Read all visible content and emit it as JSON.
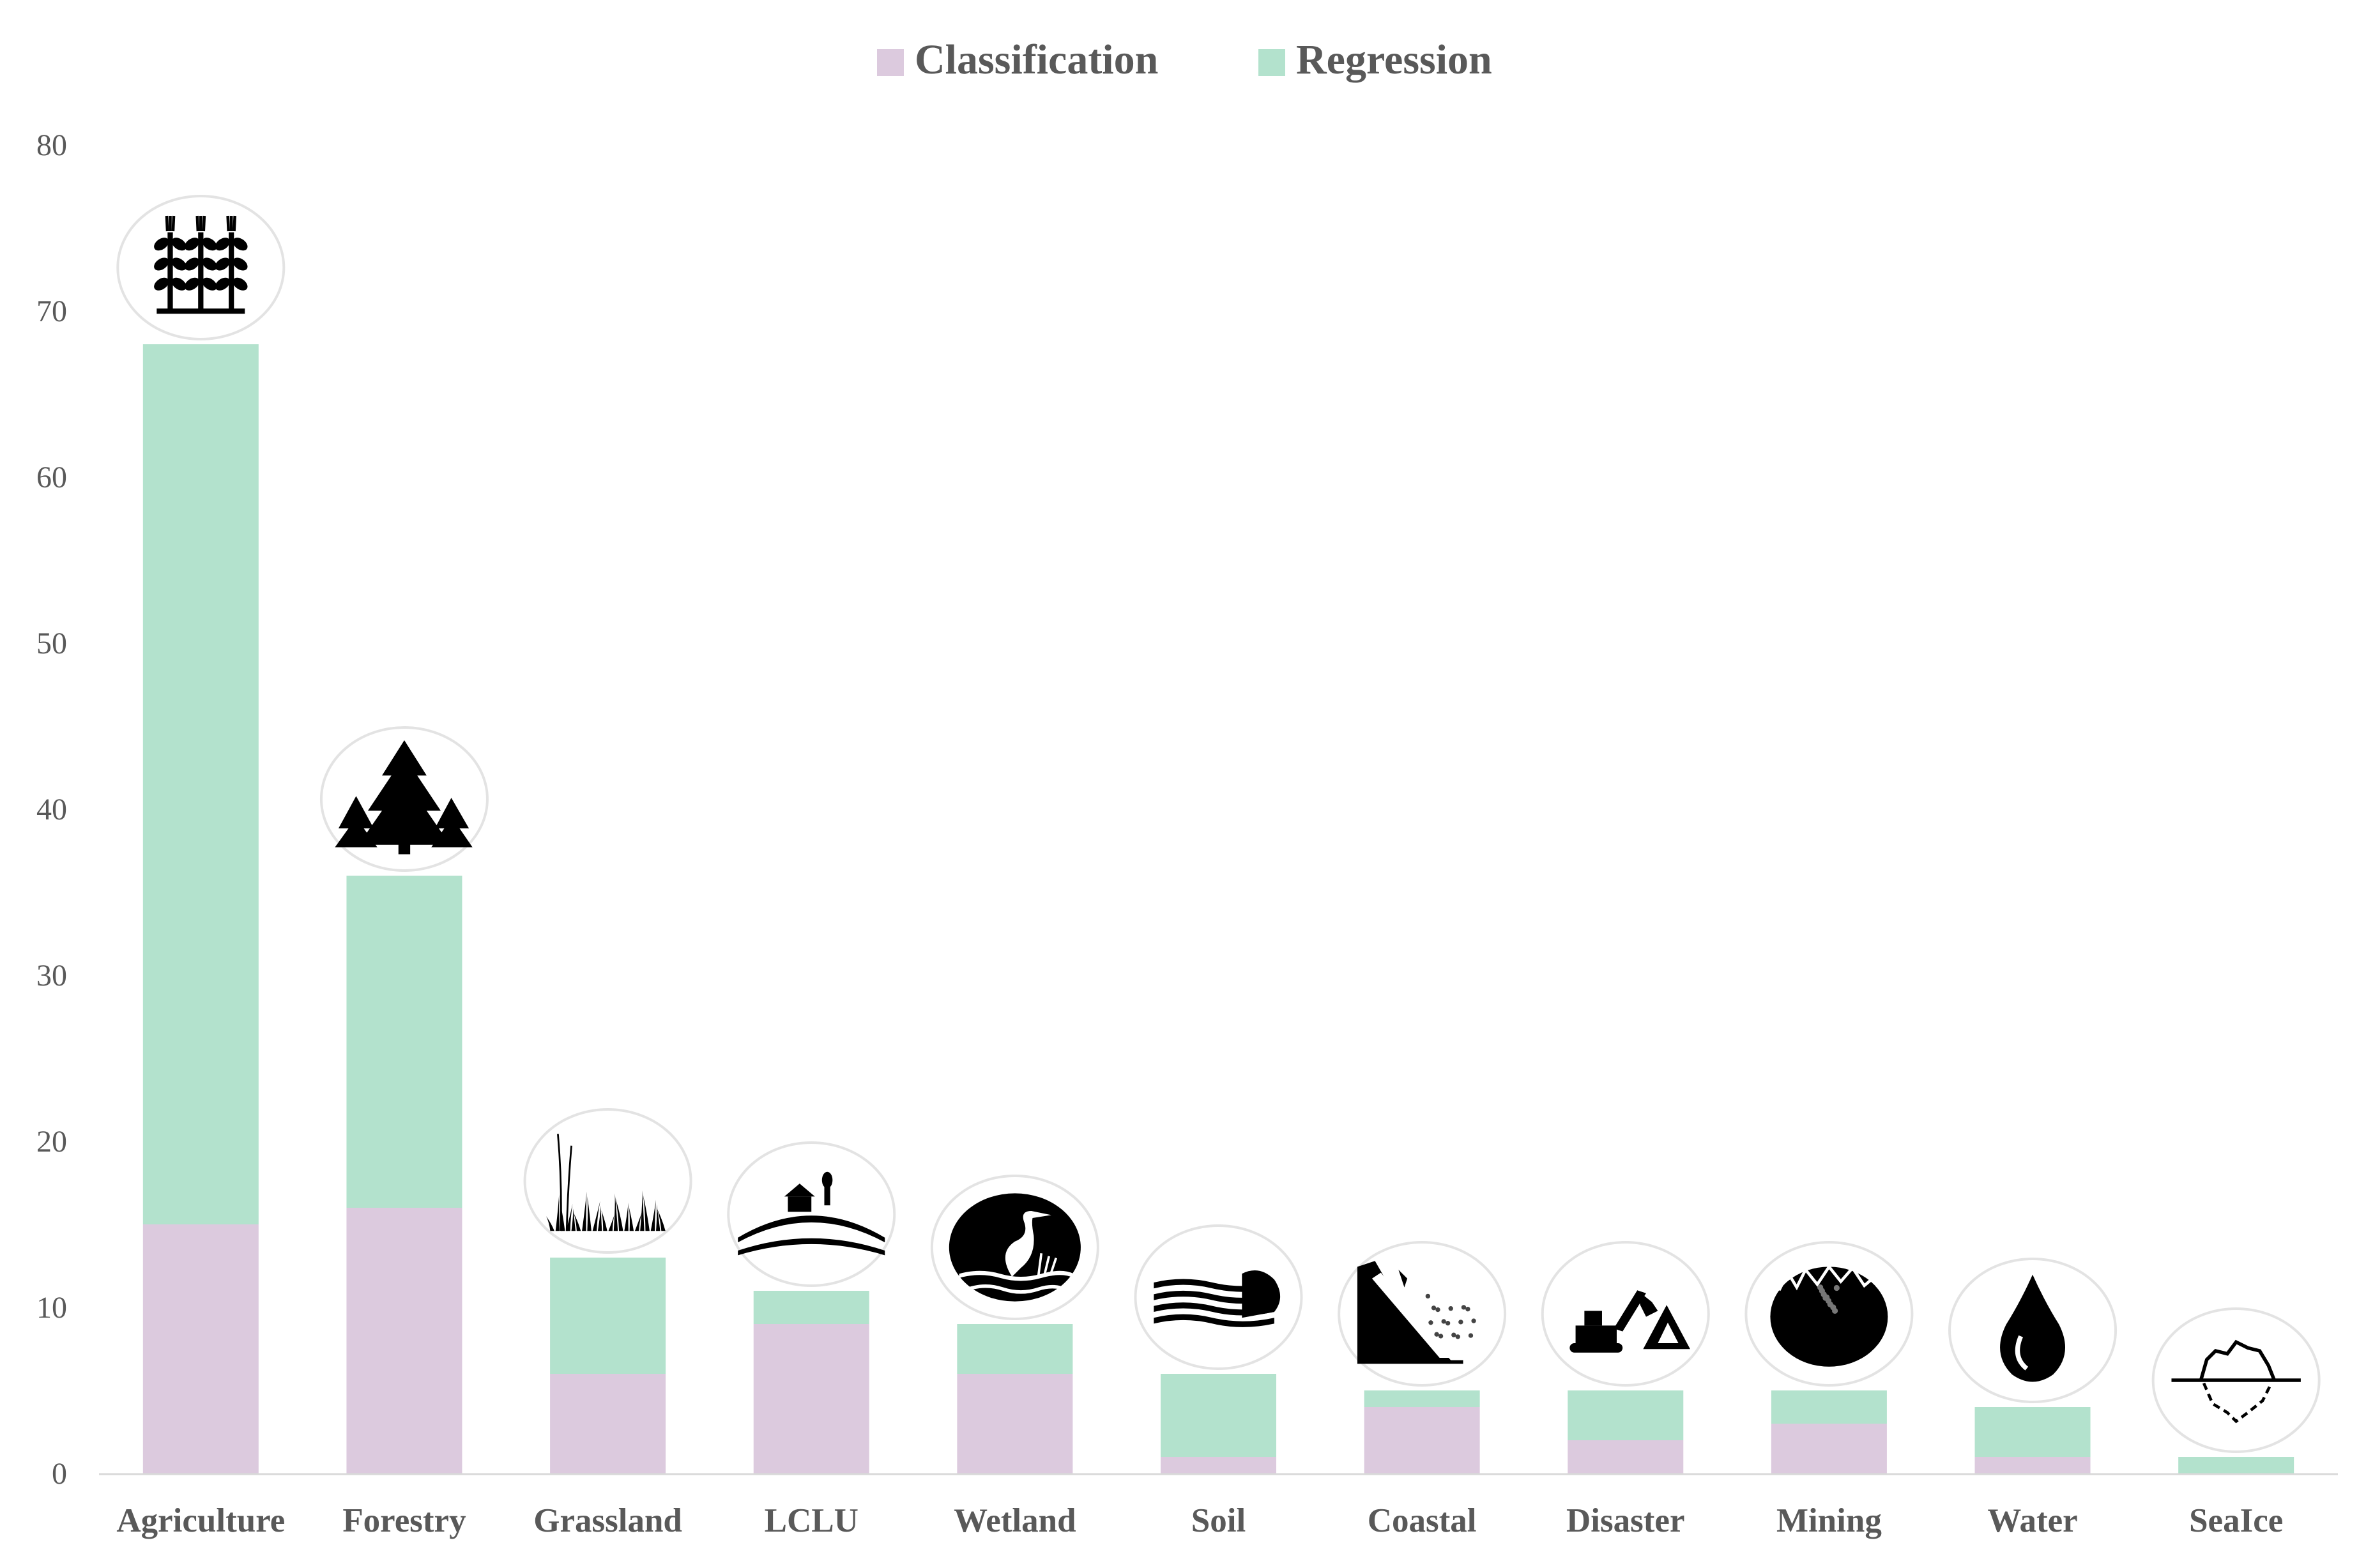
{
  "chart_data": {
    "type": "bar",
    "stacked": true,
    "categories": [
      "Agriculture",
      "Forestry",
      "Grassland",
      "LCLU",
      "Wetland",
      "Soil",
      "Coastal",
      "Disaster",
      "Mining",
      "Water",
      "SeaIce"
    ],
    "series": [
      {
        "name": "Classification",
        "color": "#dccade",
        "values": [
          15,
          16,
          6,
          9,
          6,
          1,
          4,
          2,
          3,
          1,
          0
        ]
      },
      {
        "name": "Regression",
        "color": "#b3e2cd",
        "values": [
          53,
          20,
          7,
          2,
          3,
          5,
          1,
          3,
          2,
          3,
          1
        ]
      }
    ],
    "category_icons": [
      "wheat-icon",
      "pine-trees-icon",
      "grass-icon",
      "farmhouse-hill-icon",
      "heron-icon",
      "soil-layers-icon",
      "cliff-erosion-icon",
      "excavator-icon",
      "mine-rock-icon",
      "water-drop-icon",
      "iceberg-icon"
    ],
    "yticks": [
      0,
      10,
      20,
      30,
      40,
      50,
      60,
      70,
      80
    ],
    "ylim": [
      0,
      80
    ],
    "xlabel": "",
    "ylabel": "",
    "title": "",
    "grid": false,
    "legend_position": "top-center"
  }
}
